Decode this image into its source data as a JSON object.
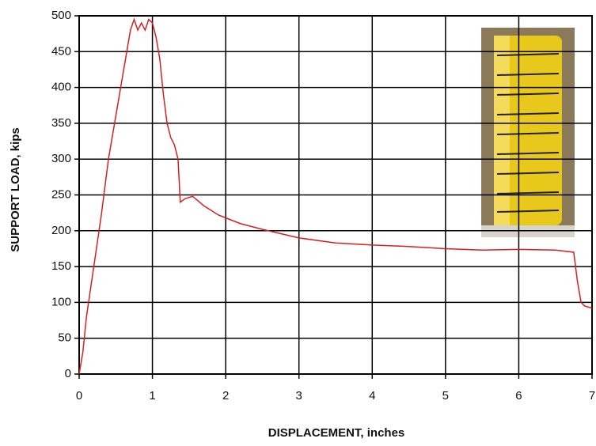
{
  "chart_data": {
    "type": "line",
    "xlabel": "DISPLACEMENT, inches",
    "ylabel": "SUPPORT LOAD, kips",
    "x": [
      0,
      0.05,
      0.1,
      0.2,
      0.3,
      0.4,
      0.5,
      0.6,
      0.7,
      0.75,
      0.8,
      0.85,
      0.9,
      0.95,
      1.0,
      1.05,
      1.1,
      1.15,
      1.2,
      1.25,
      1.3,
      1.35,
      1.38,
      1.45,
      1.55,
      1.7,
      1.9,
      2.0,
      2.2,
      2.5,
      3.0,
      3.5,
      4.0,
      4.5,
      5.0,
      5.5,
      6.0,
      6.5,
      6.75,
      6.8,
      6.85,
      6.9,
      7.0
    ],
    "values": [
      0,
      30,
      80,
      150,
      220,
      300,
      360,
      420,
      480,
      495,
      480,
      490,
      480,
      495,
      490,
      470,
      440,
      390,
      350,
      330,
      320,
      300,
      240,
      245,
      248,
      235,
      222,
      218,
      210,
      202,
      190,
      183,
      180,
      178,
      175,
      173,
      174,
      173,
      170,
      130,
      100,
      95,
      92
    ],
    "color": "#d42020",
    "xlim": [
      0,
      7
    ],
    "xticks": [
      0,
      1,
      2,
      3,
      4,
      5,
      6,
      7
    ],
    "ylim": [
      0,
      500
    ],
    "yticks": [
      0,
      50,
      100,
      150,
      200,
      250,
      300,
      350,
      400,
      450,
      500
    ],
    "grid": true
  }
}
